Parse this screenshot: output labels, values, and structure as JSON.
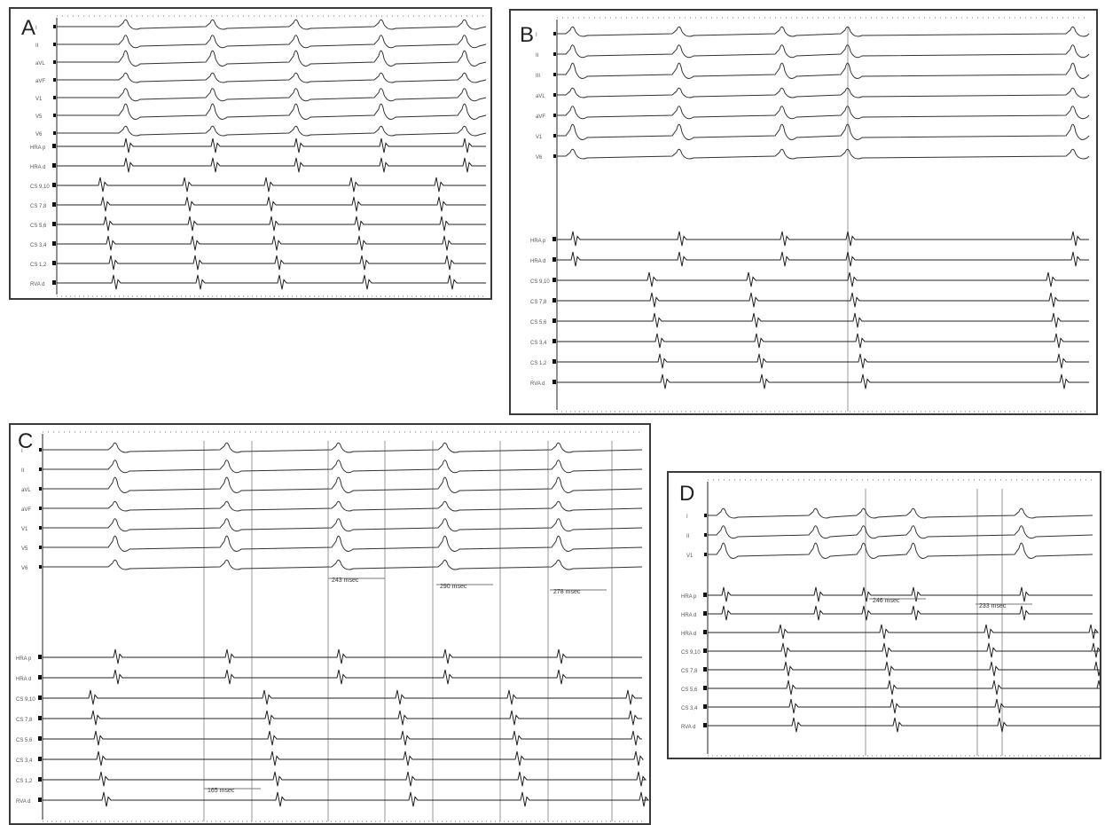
{
  "panels": [
    {
      "id": "panel-a",
      "letter": "A",
      "surface_leads": [
        "I",
        "II",
        "aVL",
        "aVF",
        "V1",
        "V5",
        "V6"
      ],
      "intracardiac_leads": [
        "HRA p",
        "HRA d",
        "CS 9,10",
        "CS 7,8",
        "CS 5,6",
        "CS 3,4",
        "CS 1,2",
        "RVA d"
      ],
      "annotations": []
    },
    {
      "id": "panel-b",
      "letter": "B",
      "surface_leads": [
        "I",
        "II",
        "III",
        "aVL",
        "aVF",
        "V1",
        "V6"
      ],
      "intracardiac_leads": [
        "HRA p",
        "HRA d",
        "CS 9,10",
        "CS 7,8",
        "CS 5,6",
        "CS 3,4",
        "CS 1,2",
        "RVA d"
      ],
      "annotations": []
    },
    {
      "id": "panel-c",
      "letter": "C",
      "surface_leads": [
        "I",
        "II",
        "aVL",
        "aVF",
        "V1",
        "V5",
        "V6"
      ],
      "intracardiac_leads": [
        "HRA p",
        "HRA d",
        "CS 9,10",
        "CS 7,8",
        "CS 5,6",
        "CS 3,4",
        "CS 1,2",
        "RVA d"
      ],
      "annotations": [
        "243 msec",
        "290 msec",
        "278 msec",
        "165 msec"
      ]
    },
    {
      "id": "panel-d",
      "letter": "D",
      "surface_leads": [
        "I",
        "II",
        "V1"
      ],
      "intracardiac_leads": [
        "HRA p",
        "HRA d",
        "HRA d",
        "CS 9,10",
        "CS 7,8",
        "CS 5,6",
        "CS 3,4",
        "RVA d"
      ],
      "annotations": [
        "246 msec",
        "233 msec"
      ]
    }
  ]
}
